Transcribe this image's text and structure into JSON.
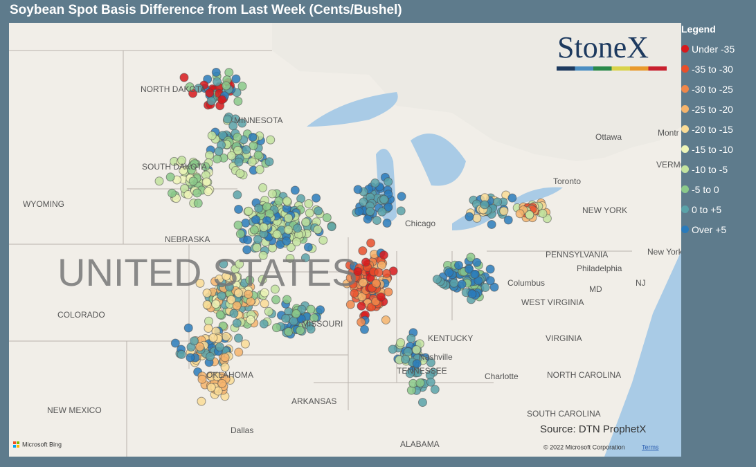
{
  "header": {
    "title": "Soybean Spot Basis Difference from Last Week (Cents/Bushel)"
  },
  "legend": {
    "title": "Legend",
    "items": [
      {
        "label": "Under -35",
        "color": "#d7191c"
      },
      {
        "label": "-35 to -30",
        "color": "#e84f2b"
      },
      {
        "label": "-30 to -25",
        "color": "#f0874a"
      },
      {
        "label": "-25 to -20",
        "color": "#f6b46c"
      },
      {
        "label": "-20 to -15",
        "color": "#fadc97"
      },
      {
        "label": "-15 to -10",
        "color": "#eef5b8"
      },
      {
        "label": "-10 to -5",
        "color": "#c3e39f"
      },
      {
        "label": "-5 to 0",
        "color": "#8bc98a"
      },
      {
        "label": "0 to +5",
        "color": "#5aa2a8"
      },
      {
        "label": "Over +5",
        "color": "#2a7bbb"
      }
    ]
  },
  "map": {
    "labels": [
      "NORTH DAKOTA",
      "MINNESOTA",
      "SOUTH DAKOTA",
      "WYOMING",
      "NEBRASKA",
      "COLORADO",
      "MISSOURI",
      "KENTUCKY",
      "TENNESSEE",
      "ARKANSAS",
      "OKLAHOMA",
      "NEW MEXICO",
      "ALABAMA",
      "VIRGINIA",
      "WEST VIRGINIA",
      "NORTH CAROLINA",
      "SOUTH CAROLINA",
      "PENNSYLVANIA",
      "NEW YORK",
      "MD",
      "NJ",
      "VERMO",
      "Chicago",
      "Columbus",
      "Nashville",
      "Dallas",
      "Philadelphia",
      "Charlotte",
      "Toronto",
      "Ottawa",
      "Montr",
      "New York",
      "UNITED STATES"
    ],
    "logo": "StoneX",
    "source": "Source: DTN ProphetX",
    "copyright": "© 2022 Microsoft Corporation",
    "terms": "Terms",
    "provider": "Microsoft Bing"
  }
}
